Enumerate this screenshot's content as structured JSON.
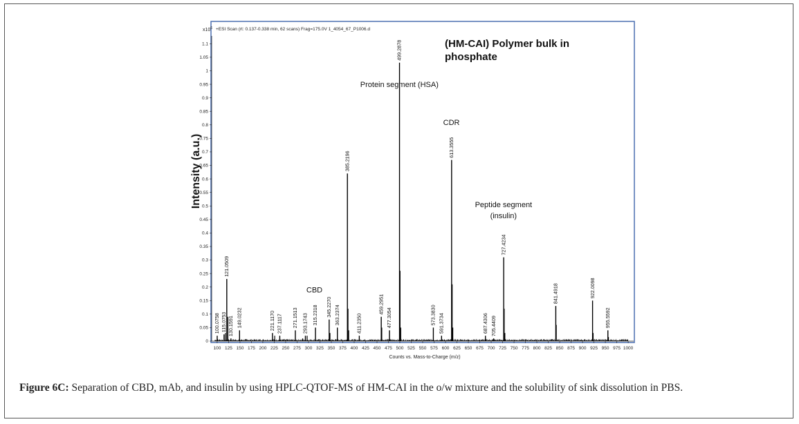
{
  "chart_data": {
    "type": "line",
    "title": "(HM-CAI) Polymer bulk in phosphate",
    "title_lines": [
      "(HM-CAI) Polymer bulk in",
      "phosphate"
    ],
    "header": "+ESI Scan (rt: 0.137-0.338 min, 62 scans) Frag=175.0V 1_4054_67_P1006.d",
    "y_multiplier": "x10",
    "y_multiplier_exp": "6",
    "ylabel": "Intensity (a.u.)",
    "xlabel": "Counts vs. Mass-to-Charge (m/z)",
    "xlim": [
      88,
      1012
    ],
    "ylim": [
      0,
      1.18
    ],
    "x_ticks": [
      "100",
      "125",
      "150",
      "175",
      "200",
      "225",
      "250",
      "275",
      "300",
      "325",
      "350",
      "375",
      "400",
      "425",
      "450",
      "475",
      "500",
      "525",
      "550",
      "575",
      "600",
      "625",
      "650",
      "675",
      "700",
      "725",
      "750",
      "775",
      "800",
      "825",
      "850",
      "875",
      "900",
      "925",
      "950",
      "975",
      "1000"
    ],
    "y_ticks": [
      "0",
      "0.05",
      "0.1",
      "0.15",
      "0.2",
      "0.25",
      "0.3",
      "0.35",
      "0.4",
      "0.45",
      "0.5",
      "0.55",
      "0.6",
      "0.65",
      "0.7",
      "0.75",
      "0.8",
      "0.85",
      "0.9",
      "0.95",
      "1",
      "1.05",
      "1.1"
    ],
    "peaks": [
      {
        "x": 100.0758,
        "y": 0.02,
        "label": "100.0758"
      },
      {
        "x": 115.0753,
        "y": 0.025,
        "label": "115.0753"
      },
      {
        "x": 121.0509,
        "y": 0.23,
        "label": "121.0509"
      },
      {
        "x": 130.1591,
        "y": 0.01,
        "label": "130.1591"
      },
      {
        "x": 149.0232,
        "y": 0.04,
        "label": "149.0232"
      },
      {
        "x": 221.117,
        "y": 0.03,
        "label": "221.1170"
      },
      {
        "x": 237.1117,
        "y": 0.02,
        "label": "237.1117"
      },
      {
        "x": 271.1513,
        "y": 0.04,
        "label": "271.1513"
      },
      {
        "x": 293.1743,
        "y": 0.02,
        "label": "293.1743"
      },
      {
        "x": 315.2318,
        "y": 0.05,
        "label": "315.2318"
      },
      {
        "x": 345.227,
        "y": 0.08,
        "label": "345.2270"
      },
      {
        "x": 363.2374,
        "y": 0.05,
        "label": "363.2374"
      },
      {
        "x": 385.2196,
        "y": 0.62,
        "label": "385.2196"
      },
      {
        "x": 411.235,
        "y": 0.02,
        "label": "411.2350"
      },
      {
        "x": 459.2951,
        "y": 0.09,
        "label": "459.2951"
      },
      {
        "x": 477.3054,
        "y": 0.04,
        "label": "477.3054"
      },
      {
        "x": 499.2878,
        "y": 1.03,
        "label": "499.2878"
      },
      {
        "x": 573.383,
        "y": 0.05,
        "label": "573.3830"
      },
      {
        "x": 591.3734,
        "y": 0.02,
        "label": "591.3734"
      },
      {
        "x": 613.3555,
        "y": 0.67,
        "label": "613.3555"
      },
      {
        "x": 687.4306,
        "y": 0.02,
        "label": "687.4306"
      },
      {
        "x": 705.4409,
        "y": 0.01,
        "label": "705.4409"
      },
      {
        "x": 727.4234,
        "y": 0.31,
        "label": "727.4234"
      },
      {
        "x": 841.4918,
        "y": 0.13,
        "label": "841.4918"
      },
      {
        "x": 922.0098,
        "y": 0.15,
        "label": "922.0098"
      },
      {
        "x": 955.5592,
        "y": 0.04,
        "label": "955.5592"
      }
    ],
    "minor_peaks": [
      {
        "x": 118.0,
        "y": 0.03
      },
      {
        "x": 123.5,
        "y": 0.09
      },
      {
        "x": 226.0,
        "y": 0.02
      },
      {
        "x": 287.2,
        "y": 0.01
      },
      {
        "x": 297.0,
        "y": 0.02
      },
      {
        "x": 347.0,
        "y": 0.03
      },
      {
        "x": 386.5,
        "y": 0.12
      },
      {
        "x": 388.0,
        "y": 0.04
      },
      {
        "x": 460.5,
        "y": 0.05
      },
      {
        "x": 500.5,
        "y": 0.26
      },
      {
        "x": 502.0,
        "y": 0.05
      },
      {
        "x": 614.6,
        "y": 0.21
      },
      {
        "x": 616.0,
        "y": 0.05
      },
      {
        "x": 728.5,
        "y": 0.12
      },
      {
        "x": 730.0,
        "y": 0.03
      },
      {
        "x": 842.5,
        "y": 0.06
      },
      {
        "x": 923.3,
        "y": 0.03
      },
      {
        "x": 956.8,
        "y": 0.015
      }
    ],
    "annotations": [
      {
        "text": "Protein segment (HSA)",
        "x": 499,
        "y": 0.94
      },
      {
        "text": "CDR",
        "x": 613,
        "y": 0.8
      },
      {
        "text": "Peptide segment",
        "x": 727,
        "y": 0.495
      },
      {
        "text": "(insulin)",
        "x": 727,
        "y": 0.455
      },
      {
        "text": "CBD",
        "x": 313,
        "y": 0.18
      }
    ]
  },
  "caption": {
    "label": "Figure 6C:",
    "text": "Separation of CBD, mAb, and insulin by using HPLC-QTOF-MS of HM-CAI in the o/w mixture and the solubility of sink dissolution in PBS."
  },
  "colors": {
    "frame_border": "#4a6fb0",
    "trace": "#000000"
  }
}
